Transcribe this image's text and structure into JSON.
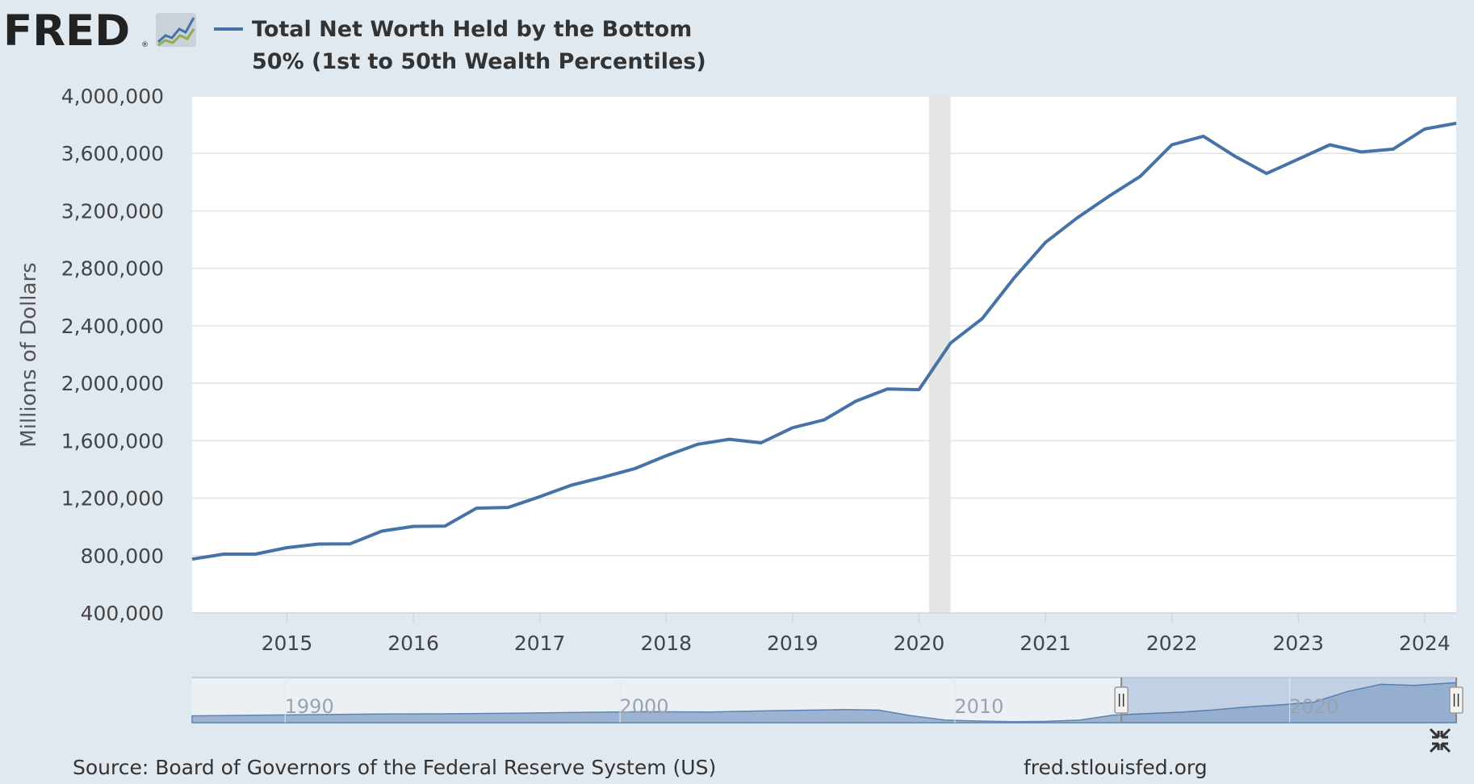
{
  "header": {
    "logo_text": "FRED",
    "logo_registered": "®",
    "legend_line1": "Total Net Worth Held by the Bottom",
    "legend_line2": "50% (1st to 50th Wealth Percentiles)"
  },
  "footer": {
    "source": "Source: Board of Governors of the Federal Reserve System (US)",
    "url": "fred.stlouisfed.org"
  },
  "colors": {
    "series": "#4572a7",
    "background": "#e1e9f0",
    "plot": "#ffffff",
    "recession": "#e5e5e5",
    "navigator_fill": "#8fa9cc",
    "navigator_selected": "#c2d0e6"
  },
  "icons": {
    "logo_graph": "fred-graph-icon",
    "collapse": "collapse-icon"
  },
  "chart_data": {
    "type": "line",
    "title": "Total Net Worth Held by the Bottom 50% (1st to 50th Wealth Percentiles)",
    "ylabel": "Millions of Dollars",
    "xlabel": "",
    "ylim": [
      400000,
      4000000
    ],
    "xlim": [
      2014.25,
      2024.25
    ],
    "y_ticks": [
      400000,
      800000,
      1200000,
      1600000,
      2000000,
      2400000,
      2800000,
      3200000,
      3600000,
      4000000
    ],
    "y_tick_labels": [
      "400,000",
      "800,000",
      "1,200,000",
      "1,600,000",
      "2,000,000",
      "2,400,000",
      "2,800,000",
      "3,200,000",
      "3,600,000",
      "4,000,000"
    ],
    "x_ticks": [
      2015,
      2016,
      2017,
      2018,
      2019,
      2020,
      2021,
      2022,
      2023,
      2024
    ],
    "x_tick_labels": [
      "2015",
      "2016",
      "2017",
      "2018",
      "2019",
      "2020",
      "2021",
      "2022",
      "2023",
      "2024"
    ],
    "recession": [
      2020.08,
      2020.25
    ],
    "grid": true,
    "series": [
      {
        "name": "Total Net Worth Held by the Bottom 50% (1st to 50th Wealth Percentiles)",
        "x": [
          2014.25,
          2014.5,
          2014.75,
          2015.0,
          2015.25,
          2015.5,
          2015.75,
          2016.0,
          2016.25,
          2016.5,
          2016.75,
          2017.0,
          2017.25,
          2017.5,
          2017.75,
          2018.0,
          2018.25,
          2018.5,
          2018.75,
          2019.0,
          2019.25,
          2019.5,
          2019.75,
          2020.0,
          2020.25,
          2020.5,
          2020.75,
          2021.0,
          2021.25,
          2021.5,
          2021.75,
          2022.0,
          2022.25,
          2022.5,
          2022.75,
          2023.0,
          2023.25,
          2023.5,
          2023.75,
          2024.0,
          2024.25
        ],
        "values": [
          775000,
          810000,
          810000,
          855000,
          880000,
          882000,
          970000,
          1003000,
          1005000,
          1130000,
          1135000,
          1210000,
          1290000,
          1345000,
          1405000,
          1495000,
          1575000,
          1610000,
          1585000,
          1690000,
          1745000,
          1875000,
          1960000,
          1955000,
          2280000,
          2450000,
          2730000,
          2980000,
          3150000,
          3300000,
          3440000,
          3660000,
          3720000,
          3580000,
          3460000,
          3560000,
          3660000,
          3610000,
          3630000,
          3770000,
          3810000
        ]
      }
    ],
    "navigator": {
      "x_labels": [
        "1990",
        "2000",
        "2010",
        "2020"
      ],
      "x_label_values": [
        1990,
        2000,
        2010,
        2020
      ],
      "xlim": [
        1986.5,
        2024.25
      ],
      "ylim": [
        0,
        4000000
      ],
      "x": [
        1986.5,
        1988,
        1990,
        1992,
        1994,
        1996,
        1998,
        2000,
        2002,
        2004,
        2006,
        2007,
        2008,
        2009,
        2010,
        2011,
        2012,
        2013,
        2014,
        2015,
        2016,
        2017,
        2018,
        2019,
        2020,
        2021,
        2022,
        2023,
        2024,
        2024.25
      ],
      "values": [
        650000,
        700000,
        760000,
        820000,
        850000,
        900000,
        980000,
        1050000,
        1020000,
        1150000,
        1250000,
        1200000,
        650000,
        250000,
        150000,
        100000,
        120000,
        250000,
        720000,
        860000,
        1000000,
        1210000,
        1500000,
        1700000,
        1950000,
        2980000,
        3660000,
        3560000,
        3770000,
        3810000
      ],
      "selected": [
        2014.25,
        2024.25
      ]
    }
  }
}
